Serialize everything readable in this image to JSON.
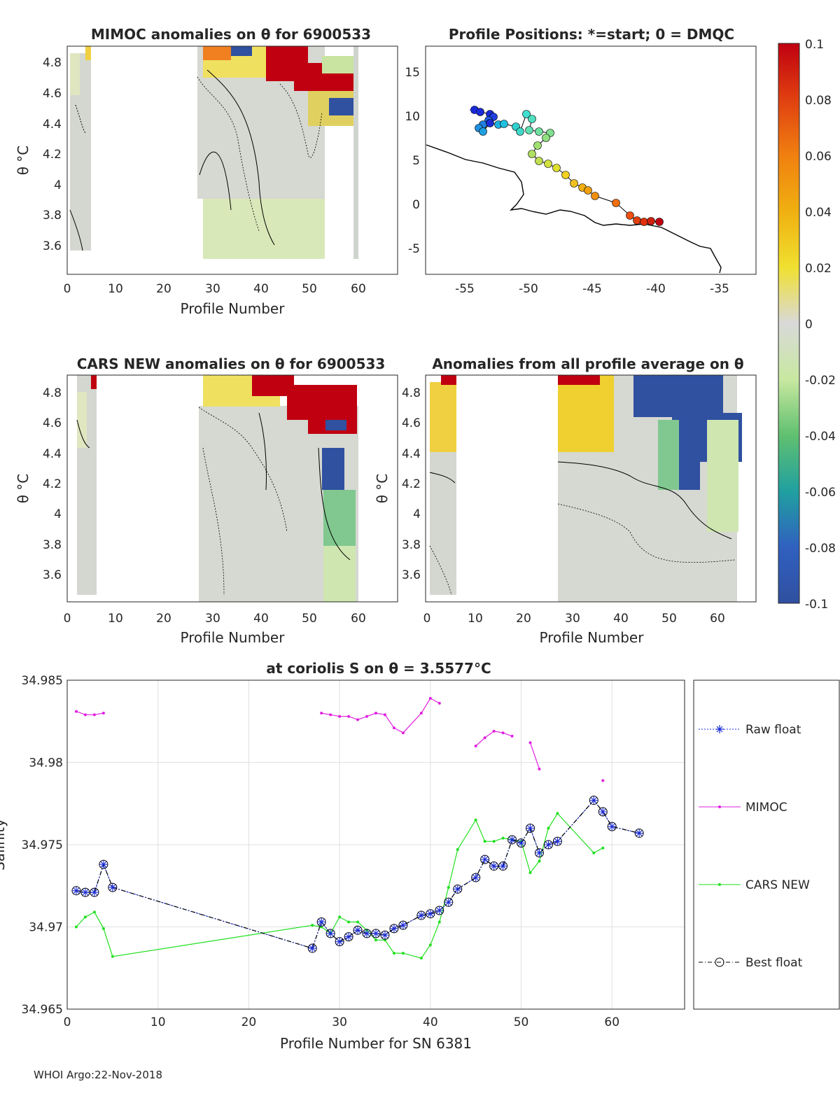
{
  "footer": "WHOI Argo:22-Nov-2018",
  "colorbar": {
    "ticks": [
      "0.1",
      "0.08",
      "0.06",
      "0.04",
      "0.02",
      "0",
      "-0.02",
      "-0.04",
      "-0.06",
      "-0.08",
      "-0.1"
    ],
    "stops": [
      "#c00010",
      "#e04010",
      "#f08010",
      "#f0b010",
      "#f0e030",
      "#d9d9d9",
      "#c8e8a0",
      "#60c070",
      "#20a0a0",
      "#3060c0",
      "#3050a0"
    ]
  },
  "panels": {
    "p1": {
      "title": "MIMOC anomalies on θ  for 6900533",
      "ylabel": "θ °C",
      "xlabel": "Profile Number",
      "xticks": [
        "0",
        "10",
        "20",
        "30",
        "40",
        "50",
        "60"
      ],
      "yticks": [
        "4.8",
        "4.6",
        "4.4",
        "4.2",
        "4",
        "3.8",
        "3.6"
      ]
    },
    "p2": {
      "title": "Profile Positions: *=start; 0 = DMQC",
      "xticks": [
        "-55",
        "-50",
        "-45",
        "-40",
        "-35"
      ],
      "yticks": [
        "15",
        "10",
        "5",
        "0",
        "-5"
      ]
    },
    "p3": {
      "title": "CARS NEW anomalies on θ for 6900533",
      "ylabel": "θ °C",
      "xlabel": "Profile Number",
      "xticks": [
        "0",
        "10",
        "20",
        "30",
        "40",
        "50",
        "60"
      ],
      "yticks": [
        "4.8",
        "4.6",
        "4.4",
        "4.2",
        "4",
        "3.8",
        "3.6"
      ]
    },
    "p4": {
      "title": "Anomalies from all profile average on θ",
      "ylabel": "θ °C",
      "xlabel": "Profile Number",
      "xticks": [
        "0",
        "10",
        "20",
        "30",
        "40",
        "50",
        "60"
      ],
      "yticks": [
        "4.8",
        "4.6",
        "4.4",
        "4.2",
        "4",
        "3.8",
        "3.6"
      ]
    }
  },
  "chart_data": {
    "type": "line",
    "title": "at coriolis S on θ = 3.5577°C",
    "xlabel": "Profile Number for SN 6381",
    "ylabel": "Salinity",
    "xlim": [
      0,
      68
    ],
    "ylim": [
      34.965,
      34.985
    ],
    "xticks": [
      "0",
      "10",
      "20",
      "30",
      "40",
      "50",
      "60"
    ],
    "yticks": [
      "34.985",
      "34.98",
      "34.975",
      "34.97",
      "34.965"
    ],
    "ytick_values": [
      34.985,
      34.98,
      34.975,
      34.97,
      34.965
    ],
    "xtick_values": [
      0,
      10,
      20,
      30,
      40,
      50,
      60
    ],
    "legend": [
      "Raw float",
      "MIMOC",
      "CARS NEW",
      "Best float"
    ],
    "series": {
      "float": {
        "x": [
          1,
          2,
          3,
          4,
          5,
          27,
          28,
          29,
          30,
          31,
          32,
          33,
          34,
          35,
          36,
          37,
          39,
          40,
          41,
          42,
          43,
          45,
          46,
          47,
          48,
          49,
          50,
          51,
          52,
          53,
          54,
          58,
          59,
          60,
          63
        ],
        "y": [
          34.9722,
          34.9721,
          34.9721,
          34.9738,
          34.9724,
          34.9687,
          34.9703,
          34.9696,
          34.9691,
          34.9694,
          34.9698,
          34.9696,
          34.9696,
          34.9695,
          34.9699,
          34.9701,
          34.9707,
          34.9708,
          34.971,
          34.9715,
          34.9723,
          34.973,
          34.9741,
          34.9737,
          34.9737,
          34.9753,
          34.9751,
          34.976,
          34.9745,
          34.975,
          34.9752,
          34.9777,
          34.977,
          34.9761,
          34.9757
        ]
      },
      "mimoc": [
        {
          "x": [
            1,
            2,
            3,
            4
          ],
          "y": [
            34.9831,
            34.9829,
            34.9829,
            34.983
          ]
        },
        {
          "x": [
            28,
            29,
            30,
            31,
            32,
            33,
            34,
            35,
            36,
            37,
            39,
            40,
            41
          ],
          "y": [
            34.983,
            34.9829,
            34.9828,
            34.9828,
            34.9826,
            34.9828,
            34.983,
            34.9829,
            34.9821,
            34.9818,
            34.983,
            34.9839,
            34.9836
          ]
        },
        {
          "x": [
            45,
            46,
            47,
            48,
            49
          ],
          "y": [
            34.981,
            34.9815,
            34.9819,
            34.9818,
            34.9816
          ]
        },
        {
          "x": [
            51,
            52
          ],
          "y": [
            34.9812,
            34.9796
          ]
        },
        {
          "x": [
            59
          ],
          "y": [
            34.9789
          ]
        }
      ],
      "cars": [
        {
          "x": [
            1,
            2,
            3,
            4,
            5,
            27,
            28,
            29,
            30,
            31,
            32,
            33,
            34,
            35,
            36,
            37,
            39,
            40,
            41,
            42,
            43,
            45,
            46,
            47,
            48,
            49,
            50,
            51,
            52,
            53,
            54,
            58,
            59
          ],
          "y": [
            34.97,
            34.9706,
            34.9709,
            34.9699,
            34.9682,
            34.9701,
            34.97,
            34.9696,
            34.9706,
            34.9703,
            34.9703,
            34.9698,
            34.9692,
            34.9692,
            34.9684,
            34.9684,
            34.9681,
            34.9689,
            34.9703,
            34.9724,
            34.9747,
            34.9765,
            34.9752,
            34.9752,
            34.9754,
            34.9753,
            34.9752,
            34.9733,
            34.974,
            34.976,
            34.9769,
            34.9745,
            34.9748
          ]
        }
      ]
    }
  }
}
